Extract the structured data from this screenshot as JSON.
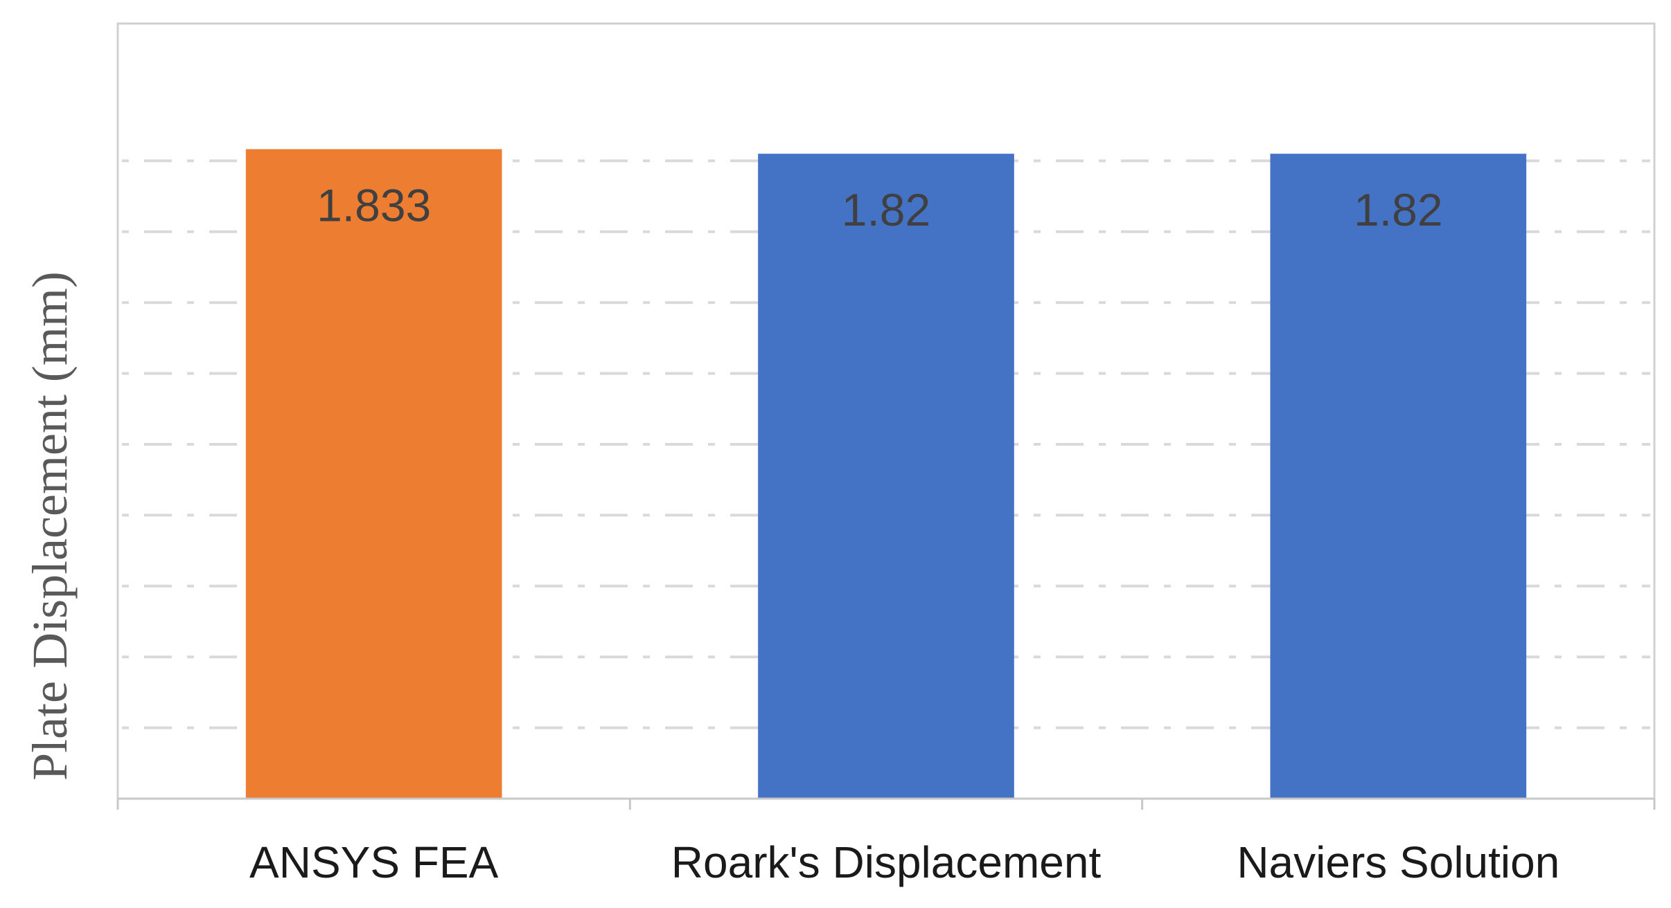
{
  "chart_data": {
    "type": "bar",
    "title": "",
    "xlabel": "",
    "ylabel": "Plate Displacement (mm)",
    "categories": [
      "ANSYS FEA",
      "Roark's Displacement",
      "Naviers Solution"
    ],
    "values": [
      1.833,
      1.82,
      1.82
    ],
    "data_labels": [
      "1.833",
      "1.82",
      "1.82"
    ],
    "bar_colors": [
      "#ED7D31",
      "#4472C4",
      "#4472C4"
    ],
    "ylim": [
      0,
      2
    ],
    "gridlines": [
      0.2,
      0.4,
      0.6,
      0.8,
      1.0,
      1.2,
      1.4,
      1.6,
      1.8
    ],
    "grid": true,
    "grid_style": "dashed",
    "legend": "none",
    "y_tick_labels_shown": false
  }
}
